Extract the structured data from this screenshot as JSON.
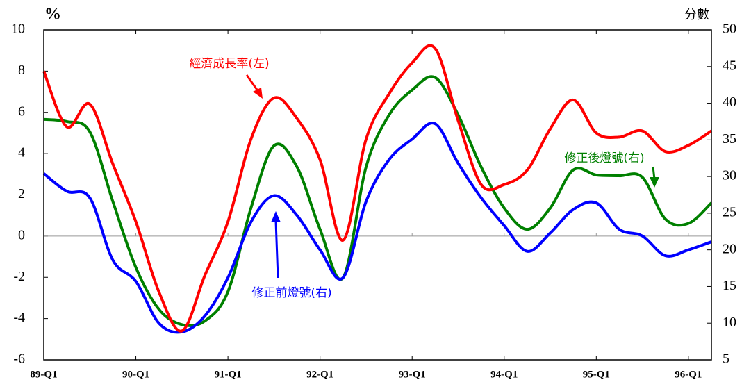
{
  "chart_data": {
    "type": "line",
    "y_label": "%",
    "y2_label": "分數",
    "categories": [
      "89-Q1",
      null,
      null,
      null,
      "90-Q1",
      null,
      null,
      null,
      "91-Q1",
      null,
      null,
      null,
      "92-Q1",
      null,
      null,
      null,
      "93-Q1",
      null,
      null,
      null,
      "94-Q1",
      null,
      null,
      null,
      "95-Q1",
      null,
      null,
      null,
      "96-Q1",
      null
    ],
    "ylim": [
      -6,
      10
    ],
    "yticks": [
      -6,
      -4,
      -2,
      0,
      2,
      4,
      6,
      8,
      10
    ],
    "y2lim": [
      5,
      50
    ],
    "y2ticks": [
      5,
      10,
      15,
      20,
      25,
      30,
      35,
      40,
      45,
      50
    ],
    "series": [
      {
        "name": "經濟成長率(左)",
        "color": "#ff0000",
        "values": [
          8.0,
          5.3,
          6.4,
          3.5,
          0.7,
          -2.7,
          -4.6,
          -1.9,
          0.7,
          4.7,
          6.7,
          5.7,
          3.7,
          -0.2,
          4.7,
          6.9,
          8.4,
          9.1,
          5.6,
          2.5,
          2.5,
          3.2,
          5.2,
          6.6,
          5.0,
          4.8,
          5.1,
          4.1,
          4.4,
          5.1
        ]
      },
      {
        "name": "修正後燈號(右)",
        "color": "#008000",
        "axis": "y2",
        "values": [
          37.8,
          37.5,
          36.1,
          26.6,
          17.6,
          11.9,
          9.8,
          10.3,
          14.3,
          25.7,
          34.2,
          31.3,
          22.8,
          16.2,
          31.3,
          38.4,
          41.8,
          43.5,
          38.4,
          31.3,
          25.7,
          22.8,
          25.7,
          30.9,
          30.2,
          30.1,
          29.9,
          24.2,
          23.6,
          26.4
        ]
      },
      {
        "name": "修正前燈號(右)",
        "color": "#0000ff",
        "axis": "y2",
        "values": [
          30.4,
          28.0,
          27.1,
          18.6,
          15.7,
          10.0,
          8.8,
          11.0,
          16.2,
          23.8,
          27.4,
          24.7,
          20.0,
          16.2,
          26.6,
          32.3,
          35.1,
          37.2,
          31.8,
          27.1,
          23.3,
          19.8,
          22.3,
          25.5,
          26.4,
          22.8,
          21.9,
          19.2,
          20.0,
          21.1
        ]
      }
    ]
  }
}
